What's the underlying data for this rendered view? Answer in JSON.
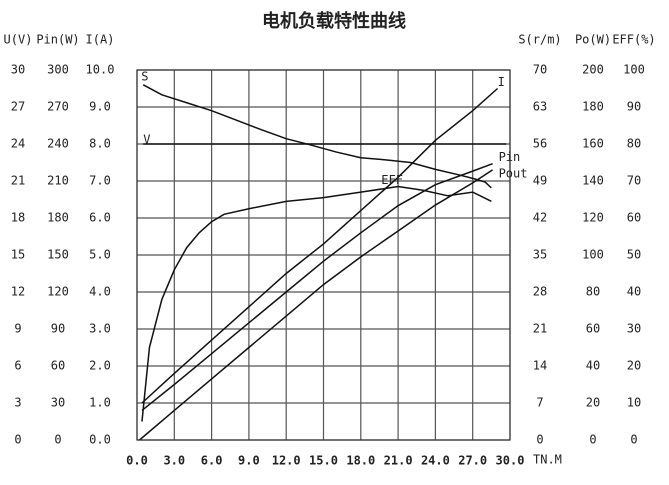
{
  "chart_data": {
    "type": "line",
    "title": "电机负载特性曲线",
    "x_label": "TN.M",
    "xlim": [
      0,
      30
    ],
    "xticks": [
      {
        "value": 0,
        "label": "0.0"
      },
      {
        "value": 3,
        "label": "3.0"
      },
      {
        "value": 6,
        "label": "6.0"
      },
      {
        "value": 9,
        "label": "9.0"
      },
      {
        "value": 12,
        "label": "12.0"
      },
      {
        "value": 15,
        "label": "15.0"
      },
      {
        "value": 18,
        "label": "18.0"
      },
      {
        "value": 21,
        "label": "21.0"
      },
      {
        "value": 24,
        "label": "24.0"
      },
      {
        "value": 27,
        "label": "27.0"
      },
      {
        "value": 30,
        "label": "30.0"
      }
    ],
    "grid": true,
    "y_axes": [
      {
        "label": "U(V)",
        "side": "left",
        "color": "#222222",
        "lim": [
          0,
          30
        ],
        "ticks": [
          0,
          3,
          6,
          9,
          12,
          15,
          18,
          21,
          24,
          27,
          30
        ]
      },
      {
        "label": "Pin(W)",
        "side": "left",
        "color": "#5a1f1f",
        "lim": [
          0,
          300
        ],
        "ticks": [
          0,
          30,
          60,
          90,
          120,
          150,
          180,
          210,
          240,
          270,
          300
        ]
      },
      {
        "label": "I(A)",
        "side": "left",
        "color": "#222222",
        "lim": [
          0,
          10
        ],
        "ticks": [
          {
            "value": 0,
            "label": "0.0"
          },
          {
            "value": 1,
            "label": "1.0"
          },
          {
            "value": 2,
            "label": "2.0"
          },
          {
            "value": 3,
            "label": "3.0"
          },
          {
            "value": 4,
            "label": "4.0"
          },
          {
            "value": 5,
            "label": "5.0"
          },
          {
            "value": 6,
            "label": "6.0"
          },
          {
            "value": 7,
            "label": "7.0"
          },
          {
            "value": 8,
            "label": "8.0"
          },
          {
            "value": 9,
            "label": "9.0"
          },
          {
            "value": 10,
            "label": "10.0"
          }
        ]
      },
      {
        "label": "S(r/m)",
        "side": "right",
        "color": "#3a1a1a",
        "lim": [
          0,
          70
        ],
        "ticks": [
          0,
          7,
          14,
          21,
          28,
          35,
          42,
          49,
          56,
          63,
          70
        ]
      },
      {
        "label": "Po(W)",
        "side": "right",
        "color": "#5a1f1f",
        "lim": [
          0,
          200
        ],
        "ticks": [
          0,
          20,
          40,
          60,
          80,
          100,
          120,
          140,
          160,
          180,
          200
        ]
      },
      {
        "label": "EFF(%)",
        "side": "right",
        "color": "#222222",
        "lim": [
          0,
          100
        ],
        "ticks": [
          0,
          10,
          20,
          30,
          40,
          50,
          60,
          70,
          80,
          90,
          100
        ]
      }
    ],
    "series": [
      {
        "name": "S",
        "axis": 3,
        "color": "#111111",
        "x": [
          0.5,
          2,
          4,
          6,
          8,
          10,
          12,
          14,
          16,
          18,
          20,
          22,
          24,
          26,
          27,
          28,
          28.5
        ],
        "values": [
          67.2,
          65.3,
          63.8,
          62.3,
          60.5,
          58.7,
          57,
          55.8,
          54.5,
          53.4,
          53,
          52.5,
          51.2,
          50.1,
          49.5,
          48.8,
          47.7
        ]
      },
      {
        "name": "V",
        "axis": 0,
        "color": "#111111",
        "x": [
          0.5,
          29.7
        ],
        "values": [
          24,
          24
        ]
      },
      {
        "name": "I",
        "axis": 2,
        "color": "#111111",
        "x": [
          0.4,
          3,
          6,
          9,
          12,
          15,
          18,
          21,
          24,
          27,
          29
        ],
        "values": [
          1.0,
          1.8,
          2.7,
          3.6,
          4.5,
          5.3,
          6.2,
          7.1,
          8.1,
          8.9,
          9.5
        ]
      },
      {
        "name": "Pin",
        "axis": 1,
        "color": "#111111",
        "x": [
          0.4,
          3,
          6,
          9,
          12,
          15,
          18,
          21,
          24,
          27,
          28.6
        ],
        "values": [
          24,
          45,
          70,
          95,
          120,
          145,
          168,
          190,
          207,
          218,
          224
        ]
      },
      {
        "name": "Pout",
        "axis": 4,
        "color": "#111111",
        "x": [
          0.2,
          3,
          6,
          9,
          12,
          15,
          18,
          21,
          24,
          27,
          28.6
        ],
        "values": [
          0,
          16,
          33,
          50,
          67,
          84,
          99,
          113,
          127,
          139,
          146
        ]
      },
      {
        "name": "EFF",
        "axis": 5,
        "color": "#111111",
        "x": [
          0.4,
          1,
          2,
          3,
          4,
          5,
          6,
          7,
          9,
          12,
          15,
          18,
          21,
          23,
          25,
          27,
          28.5
        ],
        "values": [
          5,
          25,
          38,
          46,
          52,
          56,
          59,
          61,
          62.5,
          64.5,
          65.5,
          67,
          68.5,
          67.5,
          66,
          67,
          64.5
        ]
      }
    ]
  }
}
